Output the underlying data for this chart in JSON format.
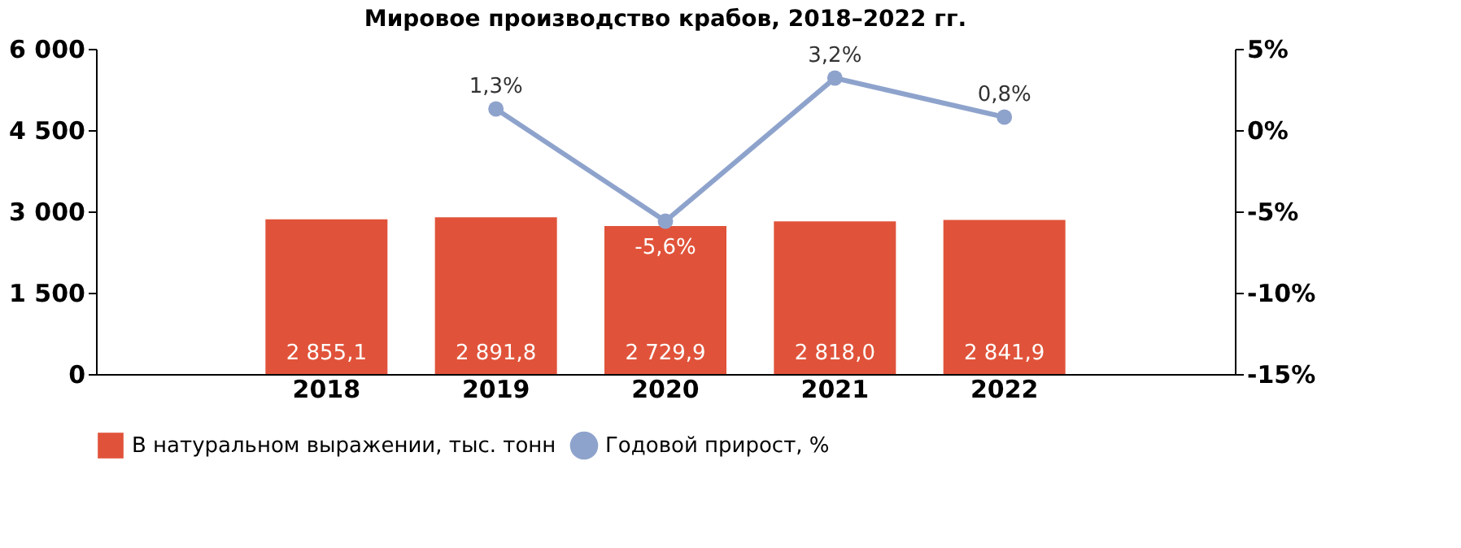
{
  "chart_data": {
    "type": "bar",
    "title": "Мировое производство крабов, 2018–2022 гг.",
    "categories": [
      null,
      "2018",
      "2019",
      "2020",
      "2021",
      "2022",
      null
    ],
    "series": [
      {
        "type": "bar",
        "name": "В натуральном выражении, тыс. тонн",
        "color": "#e0533a",
        "values": [
          null,
          2855.1,
          2891.8,
          2729.9,
          2818.0,
          2841.9,
          null
        ],
        "value_labels": [
          null,
          "2 855,1",
          "2 891,8",
          "2 729,9",
          "2 818,0",
          "2 841,9",
          null
        ]
      },
      {
        "type": "line",
        "axis": "y2",
        "name": "Годовой прирост, %",
        "color": "#8ea3cc",
        "marker": "circle",
        "values": [
          null,
          null,
          1.3,
          -5.6,
          3.2,
          0.8,
          null
        ],
        "value_labels": [
          null,
          null,
          "1,3%",
          "-5,6%",
          "3,2%",
          "0,8%",
          null
        ]
      }
    ],
    "ylim": [
      0,
      6000
    ],
    "yticks": [
      0,
      {
        "value": 1500,
        "label": "1 500"
      },
      {
        "value": 3000,
        "label": "3 000"
      },
      {
        "value": 4500,
        "label": "4 500"
      },
      {
        "value": 6000,
        "label": "6 000"
      }
    ],
    "y2lim": [
      -15,
      5
    ],
    "y2ticks": [
      {
        "value": -15,
        "label": "-15%"
      },
      {
        "value": -10,
        "label": "-10%"
      },
      {
        "value": -5,
        "label": "-5%"
      },
      {
        "value": 0,
        "label": "0%"
      },
      {
        "value": 5,
        "label": "5%"
      }
    ],
    "grid": false,
    "legend": "bottom"
  }
}
